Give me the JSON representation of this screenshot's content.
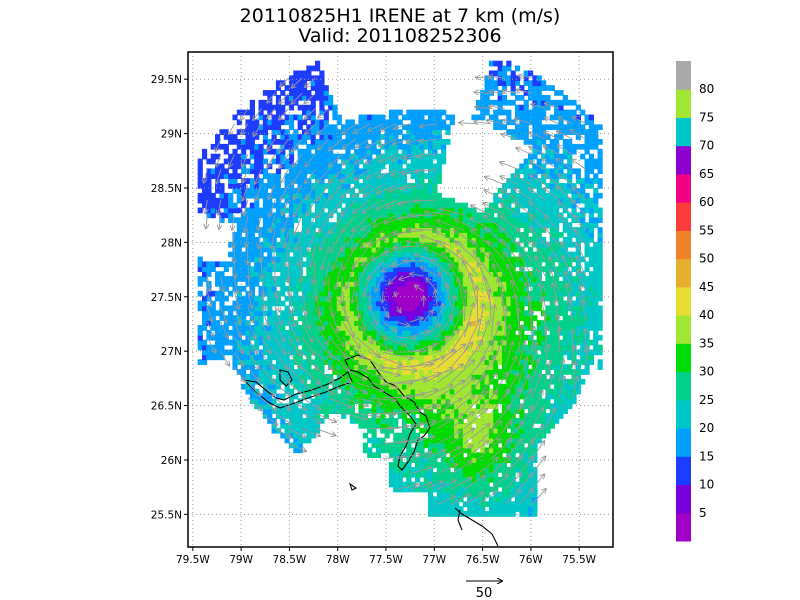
{
  "chart_data": {
    "type": "heatmap",
    "title": "20110825H1 IRENE at 7 km (m/s)",
    "subtitle": "Valid: 201108252306",
    "xlim": [
      -79.55,
      -75.15
    ],
    "ylim": [
      25.2,
      29.75
    ],
    "x_ticks": [
      {
        "value": -79.5,
        "label": "79.5W"
      },
      {
        "value": -79.0,
        "label": "79W"
      },
      {
        "value": -78.5,
        "label": "78.5W"
      },
      {
        "value": -78.0,
        "label": "78W"
      },
      {
        "value": -77.5,
        "label": "77.5W"
      },
      {
        "value": -77.0,
        "label": "77W"
      },
      {
        "value": -76.5,
        "label": "76.5W"
      },
      {
        "value": -76.0,
        "label": "76W"
      },
      {
        "value": -75.5,
        "label": "75.5W"
      }
    ],
    "y_ticks": [
      {
        "value": 25.5,
        "label": "25.5N"
      },
      {
        "value": 26.0,
        "label": "26N"
      },
      {
        "value": 26.5,
        "label": "26.5N"
      },
      {
        "value": 27.0,
        "label": "27N"
      },
      {
        "value": 27.5,
        "label": "27.5N"
      },
      {
        "value": 28.0,
        "label": "28N"
      },
      {
        "value": 28.5,
        "label": "28.5N"
      },
      {
        "value": 29.0,
        "label": "29N"
      },
      {
        "value": 29.5,
        "label": "29.5N"
      }
    ],
    "grid": true,
    "storm_center": {
      "lon": -77.25,
      "lat": 27.45
    },
    "approx_rmw_deg": 0.6,
    "approx_max_wind_ms": 45,
    "colorbar": {
      "labels": [
        "5",
        "10",
        "15",
        "20",
        "25",
        "30",
        "35",
        "40",
        "45",
        "50",
        "55",
        "60",
        "65",
        "70",
        "75",
        "80"
      ],
      "colors": [
        "#a000c8",
        "#7800dc",
        "#1e3cff",
        "#00a0ff",
        "#00c8c8",
        "#00d28c",
        "#00dc00",
        "#a0e632",
        "#e6dc32",
        "#e6af2d",
        "#f08228",
        "#fa3c3c",
        "#f00082",
        "#8c00d2",
        "#00c8c8",
        "#a0e632",
        "#aaaaaa"
      ]
    },
    "vector_reference": {
      "value": "50"
    }
  }
}
